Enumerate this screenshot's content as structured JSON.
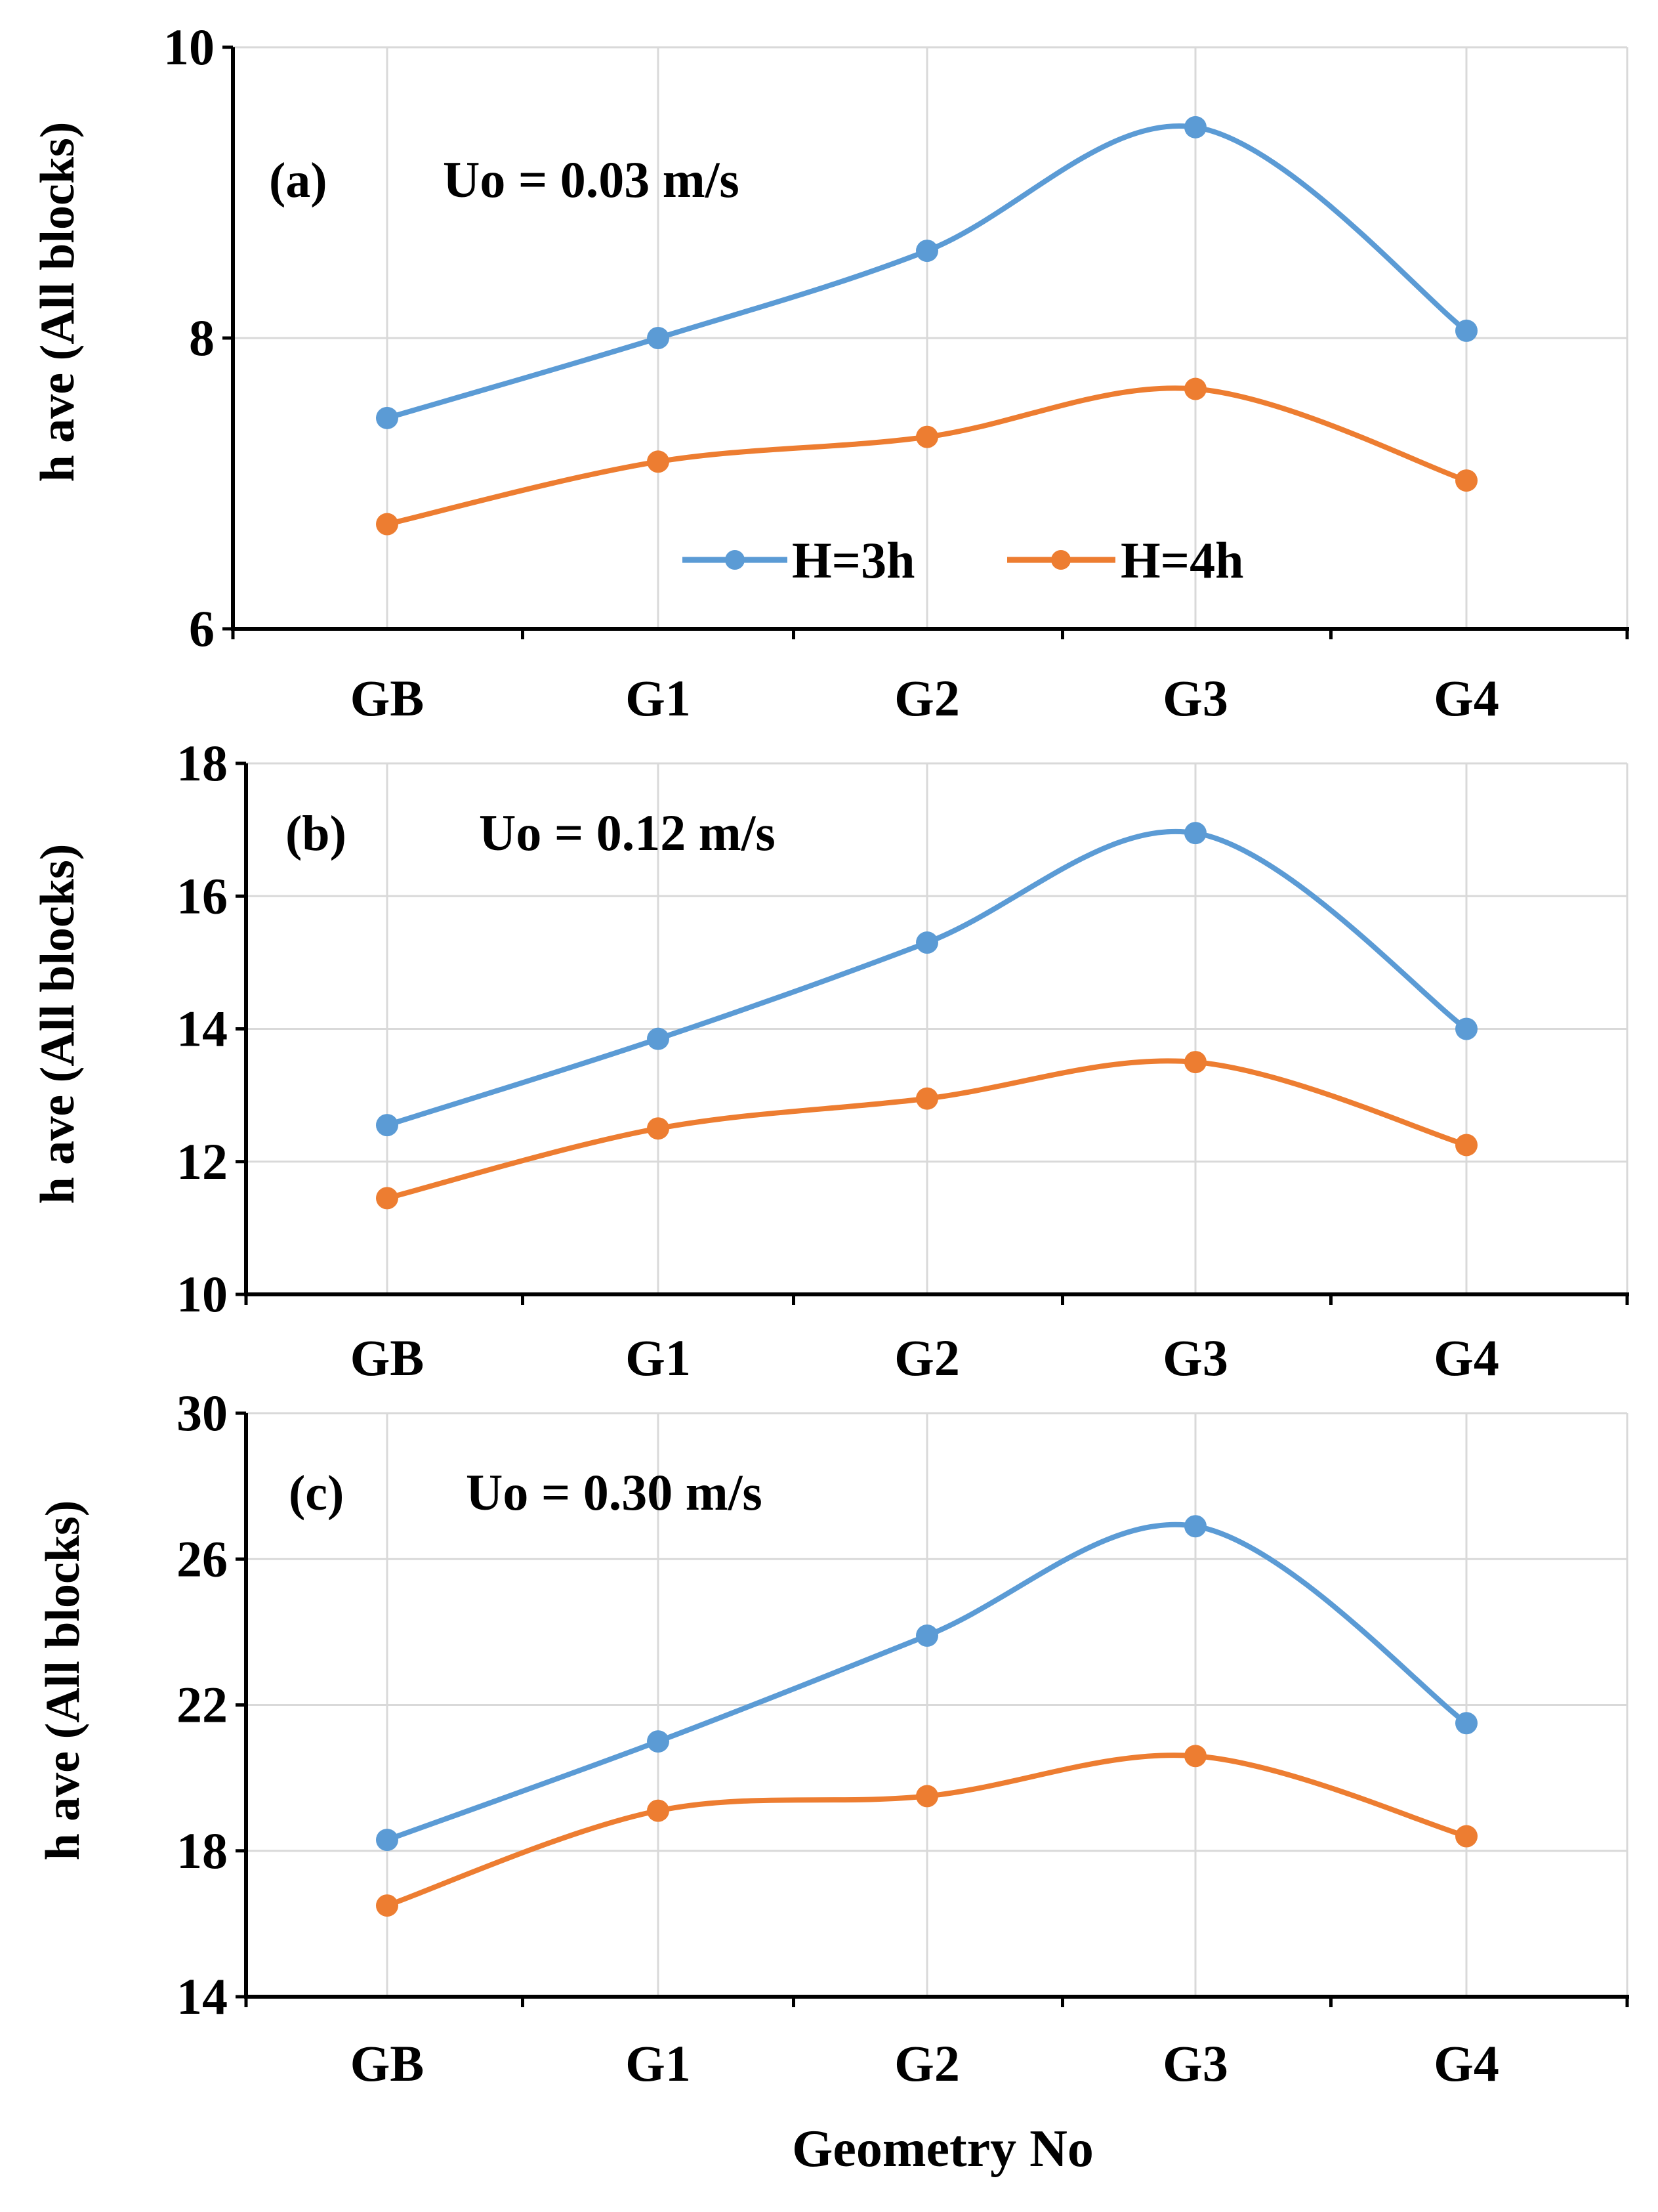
{
  "figure": {
    "xlabel": "Geometry No",
    "legend": [
      {
        "label": "H=3h",
        "color": "#5b9bd5"
      },
      {
        "label": "H=4h",
        "color": "#ed7d31"
      }
    ]
  },
  "chart_data": [
    {
      "type": "line",
      "panel_label": "(a)",
      "annotation": "Uo = 0.03 m/s",
      "ylabel": "h ave (All blocks)",
      "xlabel": "",
      "categories": [
        "GB",
        "G1",
        "G2",
        "G3",
        "G4"
      ],
      "ylim": [
        6,
        10
      ],
      "yticks": [
        6,
        8,
        10
      ],
      "grid": true,
      "series": [
        {
          "name": "H=3h",
          "color": "#5b9bd5",
          "values": [
            7.45,
            8.0,
            8.6,
            9.45,
            8.05
          ]
        },
        {
          "name": "H=4h",
          "color": "#ed7d31",
          "values": [
            6.72,
            7.15,
            7.32,
            7.65,
            7.02
          ]
        }
      ]
    },
    {
      "type": "line",
      "panel_label": "(b)",
      "annotation": "Uo = 0.12 m/s",
      "ylabel": "h ave (All blocks)",
      "xlabel": "",
      "categories": [
        "GB",
        "G1",
        "G2",
        "G3",
        "G4"
      ],
      "ylim": [
        10,
        18
      ],
      "yticks": [
        10,
        12,
        14,
        16,
        18
      ],
      "grid": true,
      "series": [
        {
          "name": "H=3h",
          "color": "#5b9bd5",
          "values": [
            12.55,
            13.85,
            15.3,
            16.95,
            14.0
          ]
        },
        {
          "name": "H=4h",
          "color": "#ed7d31",
          "values": [
            11.45,
            12.5,
            12.95,
            13.5,
            12.25
          ]
        }
      ]
    },
    {
      "type": "line",
      "panel_label": "(c)",
      "annotation": "Uo = 0.30 m/s",
      "ylabel": "h ave (All blocks)",
      "xlabel": "Geometry No",
      "categories": [
        "GB",
        "G1",
        "G2",
        "G3",
        "G4"
      ],
      "ylim": [
        14,
        30
      ],
      "yticks": [
        14,
        18,
        22,
        26,
        30
      ],
      "grid": true,
      "series": [
        {
          "name": "H=3h",
          "color": "#5b9bd5",
          "values": [
            18.3,
            21.0,
            23.9,
            26.9,
            21.5
          ]
        },
        {
          "name": "H=4h",
          "color": "#ed7d31",
          "values": [
            16.5,
            19.1,
            19.5,
            20.6,
            18.4
          ]
        }
      ]
    }
  ]
}
